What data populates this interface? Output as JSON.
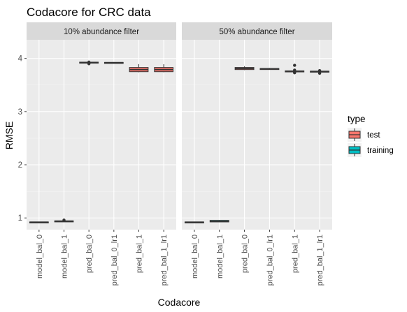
{
  "chart_data": {
    "type": "boxplot",
    "title": "Codacore for CRC data",
    "xlabel": "Codacore",
    "ylabel": "RMSE",
    "ylim": [
      0.78,
      4.35
    ],
    "yticks": [
      1,
      2,
      3,
      4
    ],
    "categories": [
      "model_bal_0",
      "model_bal_1",
      "pred_bal_0",
      "pred_bal_0_lr1",
      "pred_bal_1",
      "pred_bal_1_lr1"
    ],
    "grid": true,
    "legend": {
      "title": "type",
      "position": "right",
      "entries": [
        {
          "name": "test",
          "color": "#F8766D"
        },
        {
          "name": "training",
          "color": "#00BFC4"
        }
      ]
    },
    "panels": [
      {
        "title": "10% abundance filter",
        "boxes": [
          {
            "category": "model_bal_0",
            "type": "training",
            "min": 0.91,
            "q1": 0.915,
            "median": 0.92,
            "q3": 0.925,
            "max": 0.93,
            "outliers": []
          },
          {
            "category": "model_bal_1",
            "type": "training",
            "min": 0.93,
            "q1": 0.935,
            "median": 0.94,
            "q3": 0.945,
            "max": 0.95,
            "outliers": [
              0.96
            ]
          },
          {
            "category": "pred_bal_0",
            "type": "test",
            "min": 3.89,
            "q1": 3.91,
            "median": 3.92,
            "q3": 3.93,
            "max": 3.94,
            "outliers": [
              3.9,
              3.93
            ]
          },
          {
            "category": "pred_bal_0_lr1",
            "type": "test",
            "min": 3.91,
            "q1": 3.915,
            "median": 3.92,
            "q3": 3.925,
            "max": 3.93,
            "outliers": []
          },
          {
            "category": "pred_bal_1",
            "type": "test",
            "min": 3.74,
            "q1": 3.75,
            "median": 3.79,
            "q3": 3.83,
            "max": 3.89,
            "outliers": []
          },
          {
            "category": "pred_bal_1_lr1",
            "type": "test",
            "min": 3.74,
            "q1": 3.75,
            "median": 3.79,
            "q3": 3.83,
            "max": 3.89,
            "outliers": []
          }
        ]
      },
      {
        "title": "50% abundance filter",
        "boxes": [
          {
            "category": "model_bal_0",
            "type": "training",
            "min": 0.91,
            "q1": 0.915,
            "median": 0.92,
            "q3": 0.925,
            "max": 0.93,
            "outliers": []
          },
          {
            "category": "model_bal_1",
            "type": "training",
            "min": 0.92,
            "q1": 0.925,
            "median": 0.935,
            "q3": 0.955,
            "max": 0.96,
            "outliers": []
          },
          {
            "category": "pred_bal_0",
            "type": "test",
            "min": 3.78,
            "q1": 3.79,
            "median": 3.81,
            "q3": 3.83,
            "max": 3.85,
            "outliers": []
          },
          {
            "category": "pred_bal_0_lr1",
            "type": "test",
            "min": 3.79,
            "q1": 3.8,
            "median": 3.805,
            "q3": 3.81,
            "max": 3.82,
            "outliers": []
          },
          {
            "category": "pred_bal_1",
            "type": "test",
            "min": 3.75,
            "q1": 3.755,
            "median": 3.76,
            "q3": 3.765,
            "max": 3.77,
            "outliers": [
              3.73,
              3.74,
              3.78,
              3.87
            ]
          },
          {
            "category": "pred_bal_1_lr1",
            "type": "test",
            "min": 3.74,
            "q1": 3.75,
            "median": 3.755,
            "q3": 3.76,
            "max": 3.78,
            "outliers": [
              3.72,
              3.77
            ]
          }
        ]
      }
    ]
  }
}
